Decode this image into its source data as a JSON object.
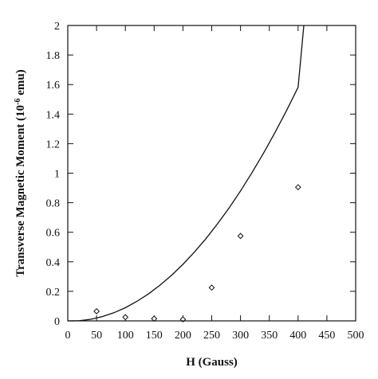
{
  "chart_data": {
    "type": "scatter",
    "xlabel": "H (Gauss)",
    "ylabel_main": "Transverse Magnetic Moment (10",
    "ylabel_exp": "-6",
    "ylabel_tail": " emu)",
    "xlim": [
      0,
      500
    ],
    "ylim": [
      0,
      2
    ],
    "x_ticks": [
      0,
      50,
      100,
      150,
      200,
      250,
      300,
      350,
      400,
      450,
      500
    ],
    "x_tick_labels": [
      "0",
      "50",
      "100",
      "150",
      "200",
      "250",
      "300",
      "350",
      "400",
      "450",
      "500"
    ],
    "y_ticks": [
      0,
      0.2,
      0.4,
      0.6,
      0.8,
      1,
      1.2,
      1.4,
      1.6,
      1.8,
      2
    ],
    "y_tick_labels": [
      "0",
      "0.2",
      "0.4",
      "0.6",
      "0.8",
      "1",
      "1.2",
      "1.4",
      "1.6",
      "1.8",
      "2"
    ],
    "grid": false,
    "series": [
      {
        "kind": "points",
        "marker": "diamond",
        "x": [
          50,
          100,
          150,
          200,
          250,
          300,
          400
        ],
        "y": [
          0.065,
          0.025,
          0.015,
          0.01,
          0.225,
          0.575,
          0.905
        ]
      },
      {
        "kind": "curve",
        "x": [
          0,
          20,
          40,
          60,
          80,
          100,
          120,
          140,
          160,
          180,
          200,
          220,
          240,
          260,
          280,
          300,
          320,
          340,
          360,
          380,
          400,
          410
        ],
        "y": [
          0,
          0.001,
          0.011,
          0.029,
          0.055,
          0.089,
          0.132,
          0.182,
          0.241,
          0.308,
          0.383,
          0.466,
          0.557,
          0.657,
          0.764,
          0.88,
          1.004,
          1.136,
          1.276,
          1.425,
          1.581,
          2.0
        ]
      }
    ]
  }
}
